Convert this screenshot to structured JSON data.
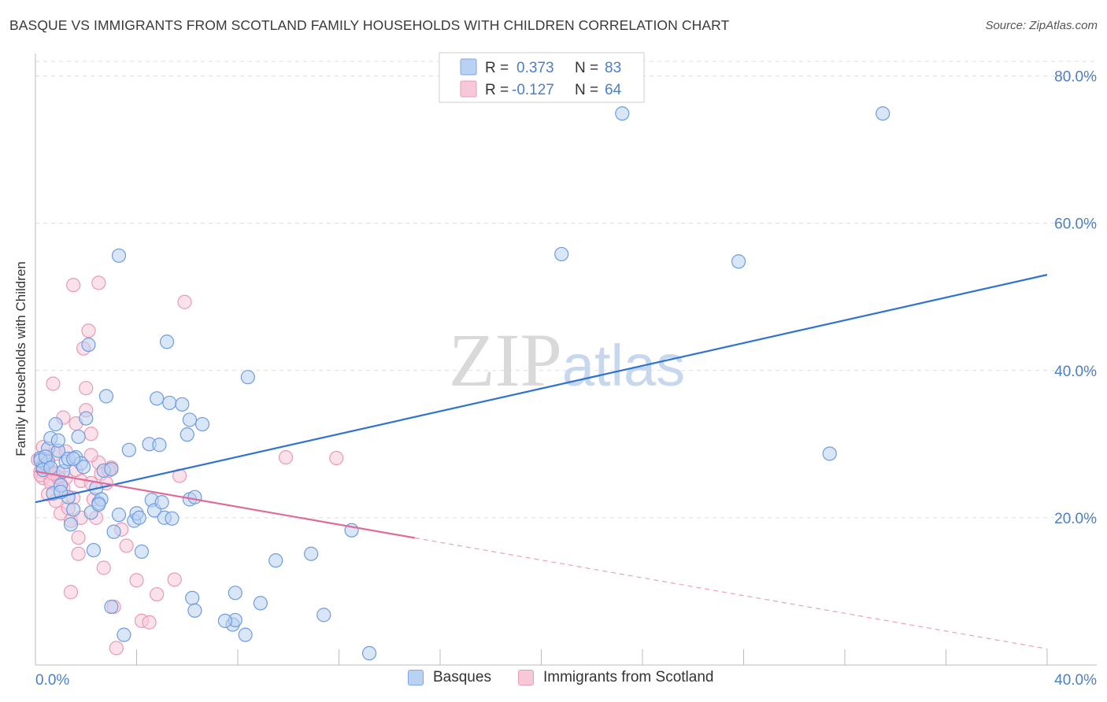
{
  "title": "BASQUE VS IMMIGRANTS FROM SCOTLAND FAMILY HOUSEHOLDS WITH CHILDREN CORRELATION CHART",
  "source": "Source: ZipAtlas.com",
  "colors": {
    "blue": "#4a86d8",
    "blue_fill": "#b9d1f3",
    "pink": "#e8709c",
    "pink_fill": "#f7c9d8",
    "axis_text": "#4a7fc8"
  },
  "legend_top": {
    "r_label": "R =",
    "n_label": "N =",
    "basques": {
      "r": "0.373",
      "n": "83"
    },
    "scotland": {
      "r": "-0.127",
      "n": "64"
    }
  },
  "legend_bottom": {
    "basques": "Basques",
    "scotland": "Immigrants from Scotland"
  },
  "chart_data": {
    "type": "scatter",
    "title": "BASQUE VS IMMIGRANTS FROM SCOTLAND FAMILY HOUSEHOLDS WITH CHILDREN CORRELATION CHART",
    "xlabel": "",
    "ylabel": "Family Households with Children",
    "xlim": [
      0,
      40
    ],
    "ylim": [
      0,
      80
    ],
    "x_tick_labels": [
      "0.0%",
      "40.0%"
    ],
    "y_ticks": [
      20,
      40,
      60,
      80
    ],
    "y_tick_labels": [
      "20.0%",
      "40.0%",
      "60.0%",
      "80.0%"
    ],
    "watermark": "ZIPatlas",
    "series": [
      {
        "name": "Basques",
        "r": 0.373,
        "n": 83,
        "trend": {
          "x": [
            0,
            40
          ],
          "y": [
            22.1,
            53.0
          ],
          "dashed_after": null
        },
        "points": [
          [
            0.2,
            28.1
          ],
          [
            0.3,
            26.9
          ],
          [
            0.4,
            27.3
          ],
          [
            0.5,
            29.4
          ],
          [
            0.5,
            27.6
          ],
          [
            0.6,
            30.8
          ],
          [
            0.7,
            23.3
          ],
          [
            0.8,
            32.7
          ],
          [
            0.9,
            29.1
          ],
          [
            0.9,
            30.5
          ],
          [
            1.0,
            24.4
          ],
          [
            1.1,
            26.3
          ],
          [
            1.2,
            27.6
          ],
          [
            1.3,
            28.0
          ],
          [
            1.3,
            22.8
          ],
          [
            1.4,
            19.1
          ],
          [
            1.5,
            21.1
          ],
          [
            1.6,
            28.2
          ],
          [
            1.7,
            31.0
          ],
          [
            1.8,
            27.4
          ],
          [
            1.9,
            26.9
          ],
          [
            2.0,
            33.5
          ],
          [
            2.1,
            43.5
          ],
          [
            2.2,
            20.7
          ],
          [
            2.3,
            15.6
          ],
          [
            2.4,
            24.0
          ],
          [
            2.5,
            22.0
          ],
          [
            2.6,
            22.5
          ],
          [
            2.7,
            26.4
          ],
          [
            2.8,
            36.5
          ],
          [
            3.0,
            7.9
          ],
          [
            3.1,
            18.1
          ],
          [
            3.3,
            55.6
          ],
          [
            3.3,
            20.4
          ],
          [
            3.5,
            4.1
          ],
          [
            3.7,
            29.2
          ],
          [
            3.9,
            19.6
          ],
          [
            4.0,
            20.6
          ],
          [
            4.1,
            20.0
          ],
          [
            4.2,
            15.4
          ],
          [
            4.5,
            30.0
          ],
          [
            4.6,
            22.4
          ],
          [
            4.7,
            21.0
          ],
          [
            4.8,
            36.2
          ],
          [
            4.9,
            29.9
          ],
          [
            5.1,
            20.0
          ],
          [
            5.2,
            43.9
          ],
          [
            5.3,
            35.6
          ],
          [
            5.4,
            19.9
          ],
          [
            5.8,
            35.4
          ],
          [
            6.0,
            31.3
          ],
          [
            6.1,
            33.3
          ],
          [
            6.1,
            22.5
          ],
          [
            6.2,
            9.1
          ],
          [
            6.3,
            7.4
          ],
          [
            6.6,
            32.7
          ],
          [
            7.8,
            5.5
          ],
          [
            7.9,
            6.1
          ],
          [
            7.9,
            9.8
          ],
          [
            8.3,
            4.1
          ],
          [
            8.4,
            39.1
          ],
          [
            8.9,
            8.4
          ],
          [
            9.5,
            14.2
          ],
          [
            10.9,
            15.1
          ],
          [
            11.4,
            6.8
          ],
          [
            12.5,
            18.3
          ],
          [
            13.2,
            1.6
          ],
          [
            20.8,
            55.8
          ],
          [
            23.2,
            74.9
          ],
          [
            27.8,
            54.8
          ],
          [
            31.4,
            28.7
          ],
          [
            33.5,
            74.9
          ],
          [
            0.2,
            27.8
          ],
          [
            0.3,
            26.5
          ],
          [
            0.4,
            28.3
          ],
          [
            0.6,
            26.8
          ],
          [
            1.0,
            23.5
          ],
          [
            1.5,
            28.0
          ],
          [
            2.5,
            21.8
          ],
          [
            3.0,
            26.6
          ],
          [
            5.0,
            22.1
          ],
          [
            6.3,
            22.8
          ],
          [
            7.5,
            6.0
          ]
        ]
      },
      {
        "name": "Immigrants from Scotland",
        "r": -0.127,
        "n": 64,
        "trend": {
          "x": [
            0,
            40
          ],
          "y": [
            26.3,
            2.2
          ],
          "dashed_after": 15
        },
        "points": [
          [
            0.1,
            27.9
          ],
          [
            0.2,
            26.3
          ],
          [
            0.3,
            25.4
          ],
          [
            0.3,
            29.6
          ],
          [
            0.4,
            27.1
          ],
          [
            0.5,
            26.8
          ],
          [
            0.5,
            23.2
          ],
          [
            0.6,
            25.2
          ],
          [
            0.7,
            38.2
          ],
          [
            0.8,
            22.3
          ],
          [
            0.8,
            28.7
          ],
          [
            0.9,
            26.1
          ],
          [
            1.0,
            20.6
          ],
          [
            1.0,
            24.5
          ],
          [
            1.1,
            33.6
          ],
          [
            1.2,
            25.4
          ],
          [
            1.3,
            21.3
          ],
          [
            1.4,
            19.6
          ],
          [
            1.4,
            9.9
          ],
          [
            1.5,
            51.6
          ],
          [
            1.5,
            22.7
          ],
          [
            1.6,
            32.8
          ],
          [
            1.7,
            15.1
          ],
          [
            1.7,
            17.3
          ],
          [
            1.8,
            25.0
          ],
          [
            1.9,
            43.0
          ],
          [
            2.0,
            37.6
          ],
          [
            2.0,
            34.6
          ],
          [
            2.1,
            45.4
          ],
          [
            2.2,
            31.4
          ],
          [
            2.2,
            24.7
          ],
          [
            2.3,
            22.5
          ],
          [
            2.4,
            20.0
          ],
          [
            2.5,
            51.9
          ],
          [
            2.5,
            27.5
          ],
          [
            2.6,
            26.0
          ],
          [
            2.7,
            13.2
          ],
          [
            2.8,
            24.7
          ],
          [
            3.0,
            26.8
          ],
          [
            3.1,
            7.9
          ],
          [
            3.2,
            2.3
          ],
          [
            3.4,
            18.4
          ],
          [
            3.6,
            16.2
          ],
          [
            4.0,
            11.5
          ],
          [
            4.2,
            6.0
          ],
          [
            4.5,
            5.8
          ],
          [
            4.8,
            9.6
          ],
          [
            5.5,
            11.6
          ],
          [
            5.7,
            25.7
          ],
          [
            5.9,
            49.3
          ],
          [
            9.9,
            28.2
          ],
          [
            11.9,
            28.1
          ],
          [
            0.2,
            25.8
          ],
          [
            0.4,
            27.8
          ],
          [
            0.6,
            24.8
          ],
          [
            0.9,
            25.5
          ],
          [
            1.2,
            29.0
          ],
          [
            1.6,
            26.5
          ],
          [
            1.8,
            20.0
          ],
          [
            2.2,
            28.5
          ],
          [
            2.9,
            26.4
          ],
          [
            0.3,
            27.0
          ],
          [
            0.7,
            26.0
          ],
          [
            1.1,
            24.0
          ]
        ]
      }
    ]
  }
}
